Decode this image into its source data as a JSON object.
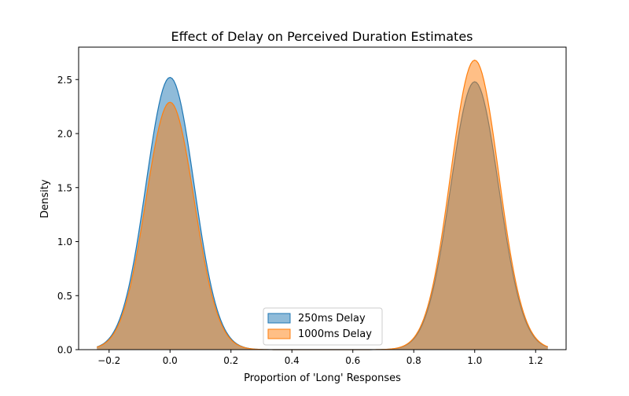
{
  "chart_data": {
    "type": "area",
    "title": "Effect of Delay on Perceived Duration Estimates",
    "xlabel": "Proportion of 'Long' Responses",
    "ylabel": "Density",
    "xlim": [
      -0.3,
      1.3
    ],
    "ylim": [
      0,
      2.8
    ],
    "xticks": [
      -0.2,
      0.0,
      0.2,
      0.4,
      0.6,
      0.8,
      1.0,
      1.2
    ],
    "xtick_labels": [
      "−0.2",
      "0.0",
      "0.2",
      "0.4",
      "0.6",
      "0.8",
      "1.0",
      "1.2"
    ],
    "yticks": [
      0.0,
      0.5,
      1.0,
      1.5,
      2.0,
      2.5
    ],
    "ytick_labels": [
      "0.0",
      "0.5",
      "1.0",
      "1.5",
      "2.0",
      "2.5"
    ],
    "grid": false,
    "legend_position": "lower-center",
    "x_range": [
      -0.24,
      1.24
    ],
    "series": [
      {
        "name": "250ms Delay",
        "color": "#1f77b4",
        "peaks": [
          {
            "center": 0.0,
            "height": 2.52,
            "sd": 0.079
          },
          {
            "center": 1.0,
            "height": 2.48,
            "sd": 0.079
          }
        ]
      },
      {
        "name": "1000ms Delay",
        "color": "#ff7f0e",
        "peaks": [
          {
            "center": 0.0,
            "height": 2.29,
            "sd": 0.079
          },
          {
            "center": 1.0,
            "height": 2.68,
            "sd": 0.079
          }
        ]
      }
    ]
  }
}
